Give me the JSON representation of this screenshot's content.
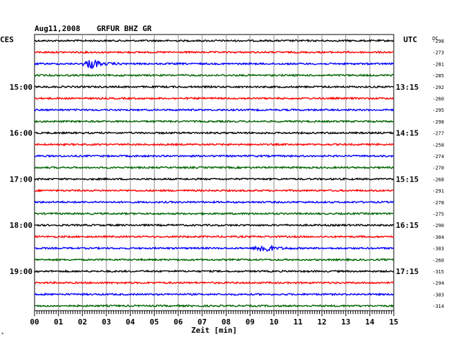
{
  "header": {
    "date": "Aug11,2008",
    "station": "GRFUR BHZ GR",
    "left_tz": "CES",
    "right_tz": "UTC",
    "dc_label": "DC"
  },
  "axis": {
    "xlabel": "Zeit [min]",
    "xticks": [
      "00",
      "01",
      "02",
      "03",
      "04",
      "05",
      "06",
      "07",
      "08",
      "09",
      "10",
      "11",
      "12",
      "13",
      "14",
      "15"
    ]
  },
  "chart_data": {
    "type": "line",
    "title": "Aug11,2008  GRFUR BHZ GR",
    "xlabel": "Zeit [min]",
    "xlim": [
      0,
      15
    ],
    "traces_per_hour": 4,
    "trace_minutes": 15,
    "trace_colors": [
      "#000000",
      "#ff0000",
      "#0000ff",
      "#006400"
    ],
    "left_hour_labels": [
      "15:00",
      "16:00",
      "17:00",
      "18:00",
      "19:00"
    ],
    "right_hour_labels": [
      "13:15",
      "14:15",
      "15:15",
      "16:15",
      "17:15"
    ],
    "dc_offsets": [
      -298,
      -273,
      -281,
      -285,
      -292,
      -260,
      -295,
      -298,
      -277,
      -258,
      -274,
      -270,
      -268,
      -291,
      -278,
      -275,
      -290,
      -304,
      -303,
      -260,
      -315,
      -294,
      -303,
      -314
    ],
    "events": [
      {
        "trace": 2,
        "minute": 2.4,
        "description": "burst"
      },
      {
        "trace": 18,
        "minute": 9.6,
        "description": "burst"
      }
    ]
  }
}
